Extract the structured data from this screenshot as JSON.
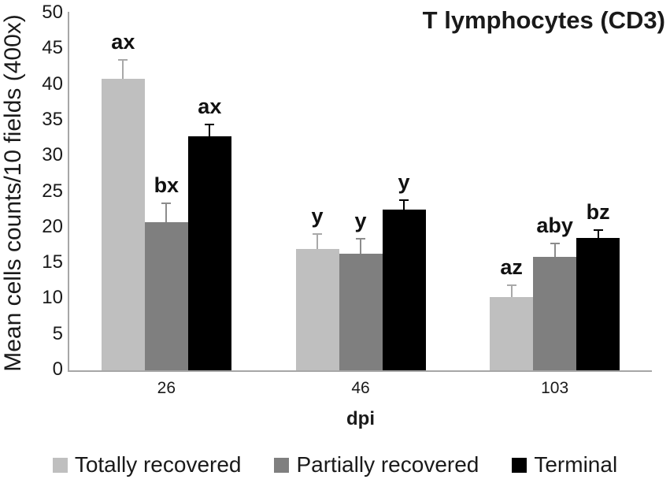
{
  "chart_data": {
    "type": "bar",
    "title": "T lymphocytes (CD3)",
    "xlabel": "dpi",
    "ylabel": "Mean cells counts/10 fields (400x)",
    "categories": [
      "26",
      "46",
      "103"
    ],
    "ylim": [
      0,
      50
    ],
    "y_tick_step": 5,
    "grid": false,
    "legend_position": "bottom",
    "series": [
      {
        "name": "Totally recovered",
        "color": "#bfbfbf",
        "error_color": "#a9a9a9",
        "values": [
          40.8,
          17.0,
          10.3
        ],
        "errors": [
          2.8,
          2.2,
          1.7
        ],
        "sig_labels": [
          "ax",
          "y",
          "az"
        ]
      },
      {
        "name": "Partially recovered",
        "color": "#7f7f7f",
        "error_color": "#8c8c8c",
        "values": [
          20.8,
          16.3,
          15.9
        ],
        "errors": [
          2.7,
          2.2,
          2.0
        ],
        "sig_labels": [
          "bx",
          "y",
          "aby"
        ]
      },
      {
        "name": "Terminal",
        "color": "#000000",
        "error_color": "#000000",
        "values": [
          32.8,
          22.5,
          18.5
        ],
        "errors": [
          1.7,
          1.4,
          1.3
        ],
        "sig_labels": [
          "ax",
          "y",
          "bz"
        ]
      }
    ]
  },
  "colors": {
    "axis": "#a6a6a6",
    "background": "#ffffff",
    "text": "#1a1a1a"
  }
}
